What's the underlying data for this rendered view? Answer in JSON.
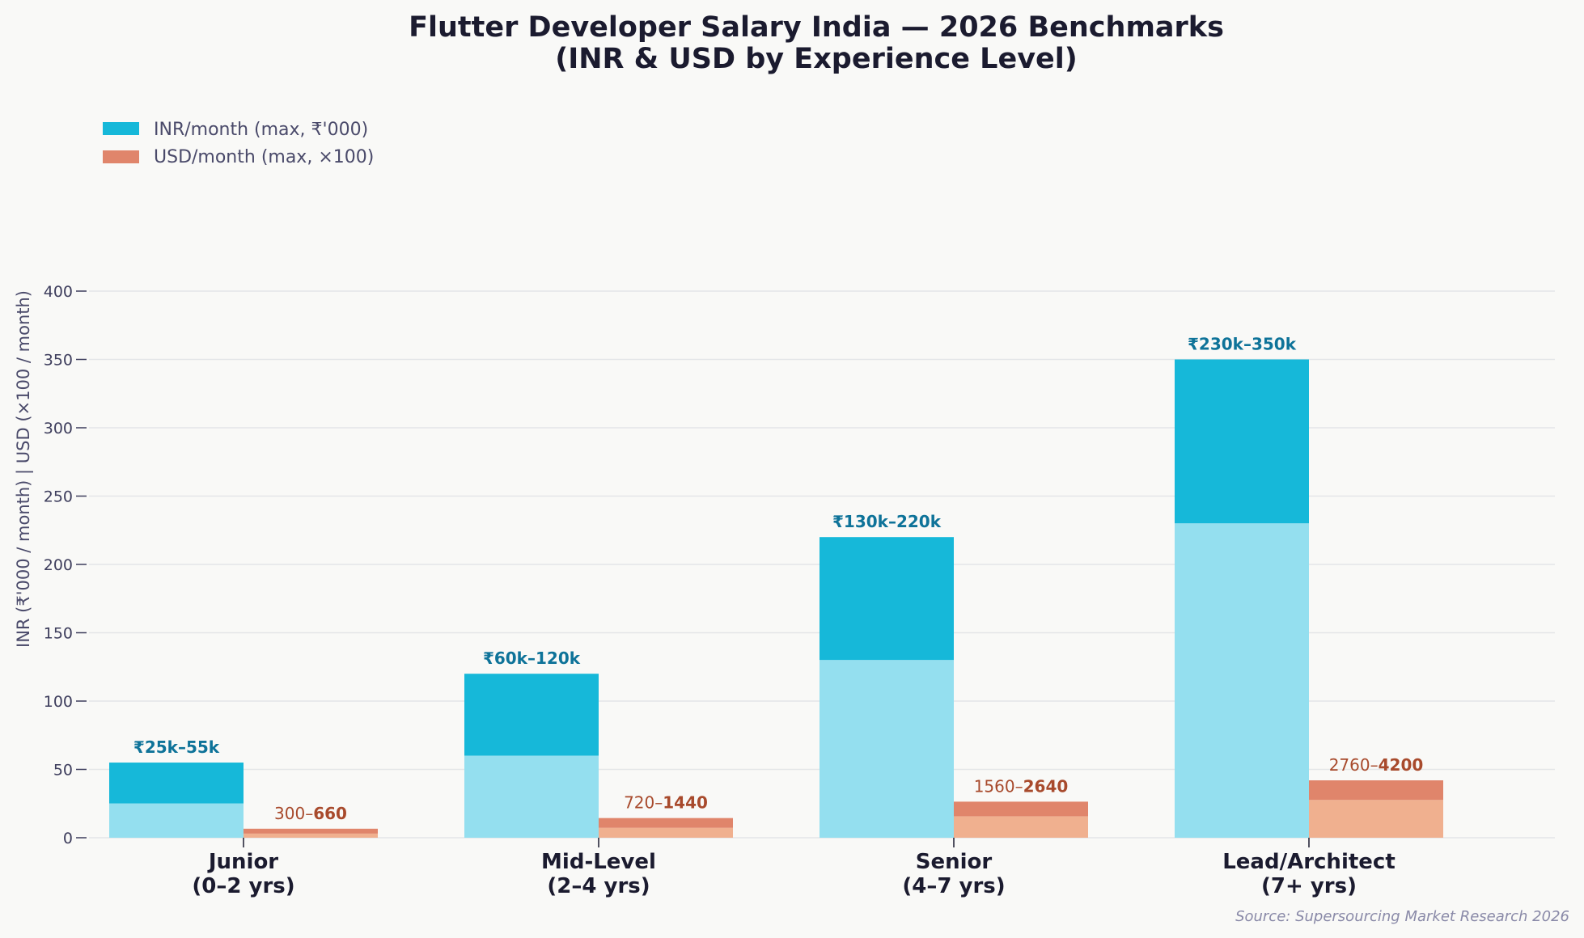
{
  "title_lines": [
    "Flutter Developer Salary India — 2026 Benchmarks",
    "(INR & USD by Experience Level)"
  ],
  "colors": {
    "inr_max": "#16b8d9",
    "inr_min": "#94dfef",
    "usd_max": "#e0856b",
    "usd_min": "#f0b08f",
    "inr_label": "#0e7399",
    "usd_label": "#a84a2c",
    "grid": "#e4e6e8",
    "background": "#f9f9f7"
  },
  "source_note": "Source: Supersourcing Market Research 2026",
  "chart_data": {
    "type": "bar",
    "title": "Flutter Developer Salary India — 2026 Benchmarks (INR & USD by Experience Level)",
    "ylabel": "INR (₹'000 / month)  |  USD (×100 / month)",
    "ylim": [
      0,
      420
    ],
    "yticks": [
      0,
      50,
      100,
      150,
      200,
      250,
      300,
      350,
      400
    ],
    "grid": true,
    "legend_position": "top-left",
    "categories": [
      [
        "Junior",
        "(0–2 yrs)"
      ],
      [
        "Mid-Level",
        "(2–4 yrs)"
      ],
      [
        "Senior",
        "(4–7 yrs)"
      ],
      [
        "Lead/Architect",
        "(7+ yrs)"
      ]
    ],
    "series": [
      {
        "name": "INR/month (max, ₹'000)",
        "min_values": [
          25,
          60,
          130,
          230
        ],
        "max_values": [
          55,
          120,
          220,
          350
        ],
        "labels": [
          "₹25k–55k",
          "₹60k–120k",
          "₹130k–220k",
          "₹230k–350k"
        ]
      },
      {
        "name": "USD/month (max, ×100)",
        "min_values": [
          3.0,
          7.2,
          15.6,
          27.6
        ],
        "max_values": [
          6.6,
          14.4,
          26.4,
          42.0
        ],
        "label_min": [
          "300–",
          "720–",
          "1560–",
          "2760–"
        ],
        "label_max": [
          "660",
          "1440",
          "2640",
          "4200"
        ]
      }
    ]
  }
}
